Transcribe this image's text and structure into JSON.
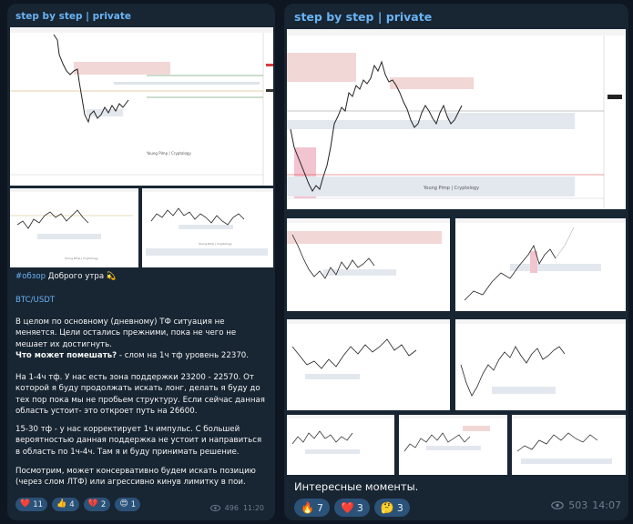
{
  "posts": [
    {
      "channel": "step by step | private",
      "charts": [
        {
          "label": "Young Pimp | Cryptology"
        },
        {
          "label": "Young Pimp | Cryptology"
        },
        {
          "label": "Young Pimp | Cryptology"
        }
      ],
      "hashtag": "#обзор",
      "greeting": "Доброго утра",
      "greeting_emoji": "💫",
      "pair": "BTC/USDT",
      "p1": "В целом по основному (дневному) ТФ ситуация не меняется. Цели остались прежними, пока не чего не мешает их достигнуть.",
      "p1_bold": "Что может помешать?",
      "p1_tail": " - слом на 1ч тф уровень 22370.",
      "p2": "На 1-4ч тф. У нас есть зона поддержки 23200 - 22570. От которой я буду продолжать искать лонг, делать я буду до тех пор пока мы не пробьем структуру. Если сейчас данная область устоит- это откроет путь на 26600.",
      "p3": "15-30 тф - у нас корректирует 1ч импульс. С большей вероятностью данная поддержка не устоит и направиться в область по 1ч-4ч. Там я и буду принимать решение.",
      "p4": "Посмотрим, может консервативно будем искать позицию (через слом ЛТФ) или агрессивно кинув лимитку в пои.",
      "reactions": [
        {
          "emoji": "❤️",
          "count": "11"
        },
        {
          "emoji": "👍",
          "count": "4"
        },
        {
          "emoji": "💔",
          "count": "2"
        },
        {
          "emoji": "😍",
          "count": "1"
        }
      ],
      "views": "496",
      "time": "11:20"
    },
    {
      "channel": "step by step | private",
      "charts": [
        {
          "label": "Young Pimp | Cryptology"
        }
      ],
      "caption": "Интересные моменты.",
      "reactions": [
        {
          "emoji": "🔥",
          "count": "7"
        },
        {
          "emoji": "❤️",
          "count": "3"
        },
        {
          "emoji": "🤔",
          "count": "3"
        }
      ],
      "views": "503",
      "time": "14:07"
    }
  ]
}
